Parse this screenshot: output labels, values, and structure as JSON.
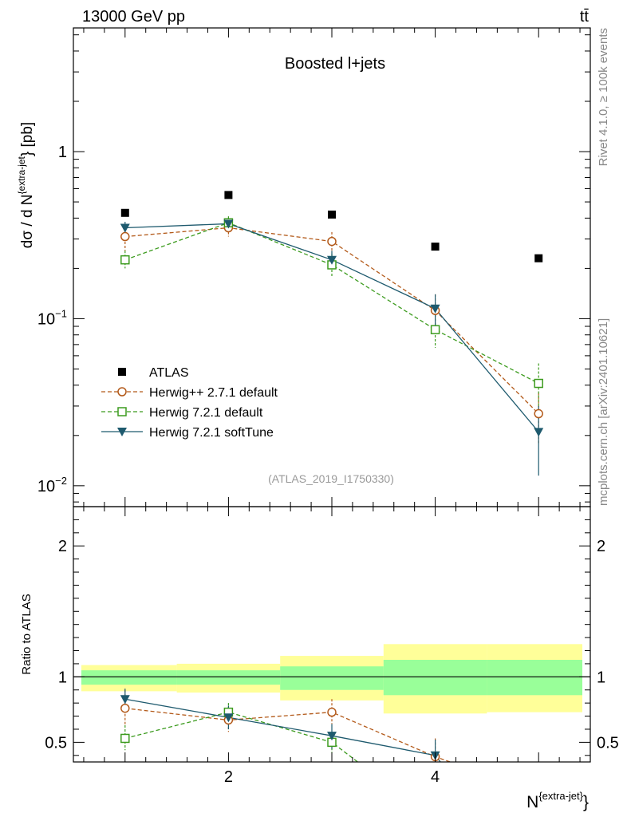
{
  "header": {
    "energy_label": "13000 GeV pp",
    "process_label": "tt̄"
  },
  "side_labels": {
    "rivet": "Rivet 4.1.0, ≥ 100k events",
    "mcplots": "mcplots.cern.ch [arXiv:2401.10621]"
  },
  "chart_data": {
    "type": "line",
    "title": "Boosted l+jets",
    "analysis_tag": "(ATLAS_2019_I1750330)",
    "xlabel_base": "N",
    "xlabel_sup": "{extra-jet}",
    "xlabel_close": "}",
    "ylabel": "dσ / d N^{extra-jet}} [pb]",
    "ylabel_parts": {
      "pre": "dσ / d N",
      "sup": "{extra-jet",
      "post": "} [pb]"
    },
    "ratio_ylabel": "Ratio to ATLAS",
    "x": [
      1,
      2,
      3,
      4,
      5
    ],
    "bin_edges": [
      0.5,
      1.5,
      2.5,
      3.5,
      4.5,
      5.5
    ],
    "xlim": [
      0.5,
      5.5
    ],
    "ylim_main": [
      0.0075,
      5.5
    ],
    "ylim_ratio": [
      0.35,
      2.3
    ],
    "main_y_tick_labels": [
      {
        "value": 1,
        "mant": "1",
        "exp": ""
      },
      {
        "value": 0.1,
        "mant": "10",
        "exp": "−1"
      },
      {
        "value": 0.01,
        "mant": "10",
        "exp": "−2"
      }
    ],
    "ratio_y_ticks": [
      0.5,
      1,
      2
    ],
    "ratio_y_tick_labels": [
      "0.5",
      "1",
      "2"
    ],
    "x_ticks": [
      2,
      4
    ],
    "x_tick_labels": [
      "2",
      "4"
    ],
    "legend_position": "lower-left",
    "series": [
      {
        "name": "ATLAS",
        "kind": "data",
        "color": "#000000",
        "marker": "filled-square",
        "values": [
          0.43,
          0.55,
          0.42,
          0.27,
          0.23
        ]
      },
      {
        "name": "Herwig++ 2.7.1 default",
        "kind": "mc",
        "color": "#b35a1a",
        "marker": "open-circle",
        "dashed": true,
        "values": [
          0.31,
          0.35,
          0.29,
          0.112,
          0.027
        ],
        "err_lo": [
          0.255,
          0.31,
          0.25,
          0.085,
          0.018
        ],
        "err_hi": [
          0.36,
          0.39,
          0.33,
          0.14,
          0.036
        ],
        "ratio": [
          0.76,
          0.67,
          0.73,
          0.39,
          null
        ],
        "ratio_lo": [
          0.63,
          0.58,
          0.64,
          0.3,
          null
        ],
        "ratio_hi": [
          0.9,
          0.77,
          0.83,
          0.53,
          null
        ],
        "ratio_tail_to": [
          4.4,
          0.28
        ]
      },
      {
        "name": "Herwig 7.2.1 default",
        "kind": "mc",
        "color": "#3c9b1e",
        "marker": "open-square",
        "dashed": true,
        "values": [
          0.225,
          0.375,
          0.21,
          0.086,
          0.041
        ],
        "err_lo": [
          0.2,
          0.34,
          0.18,
          0.067,
          0.03
        ],
        "err_hi": [
          0.255,
          0.41,
          0.245,
          0.105,
          0.054
        ],
        "ratio": [
          0.53,
          0.73,
          0.5,
          null,
          null
        ],
        "ratio_lo": [
          0.44,
          0.65,
          0.42,
          null,
          null
        ],
        "ratio_hi": [
          0.63,
          0.8,
          0.58,
          null,
          null
        ],
        "ratio_tail_to": [
          3.25,
          0.35
        ]
      },
      {
        "name": "Herwig 7.2.1 softTune",
        "kind": "mc",
        "color": "#1e5a6e",
        "marker": "filled-triangle-down",
        "dashed": false,
        "values": [
          0.35,
          0.37,
          0.225,
          0.115,
          0.021
        ],
        "err_lo": [
          0.32,
          0.34,
          0.2,
          0.09,
          0.0115
        ],
        "err_hi": [
          0.38,
          0.4,
          0.255,
          0.14,
          0.03
        ],
        "ratio": [
          0.83,
          0.69,
          0.55,
          0.4,
          null
        ],
        "ratio_lo": [
          0.74,
          0.6,
          0.45,
          0.3,
          null
        ],
        "ratio_hi": [
          0.91,
          0.78,
          0.64,
          0.52,
          null
        ],
        "ratio_tail_to": [
          4.05,
          0.35
        ]
      }
    ],
    "uncertainty_bands": {
      "yellow_lo": [
        0.89,
        0.88,
        0.82,
        0.72,
        0.73
      ],
      "yellow_hi": [
        1.09,
        1.1,
        1.16,
        1.25,
        1.25
      ],
      "green_lo": [
        0.94,
        0.94,
        0.9,
        0.86,
        0.86
      ],
      "green_hi": [
        1.05,
        1.05,
        1.08,
        1.13,
        1.13
      ],
      "yellow_color": "#ffff99",
      "green_color": "#99ff99"
    }
  }
}
